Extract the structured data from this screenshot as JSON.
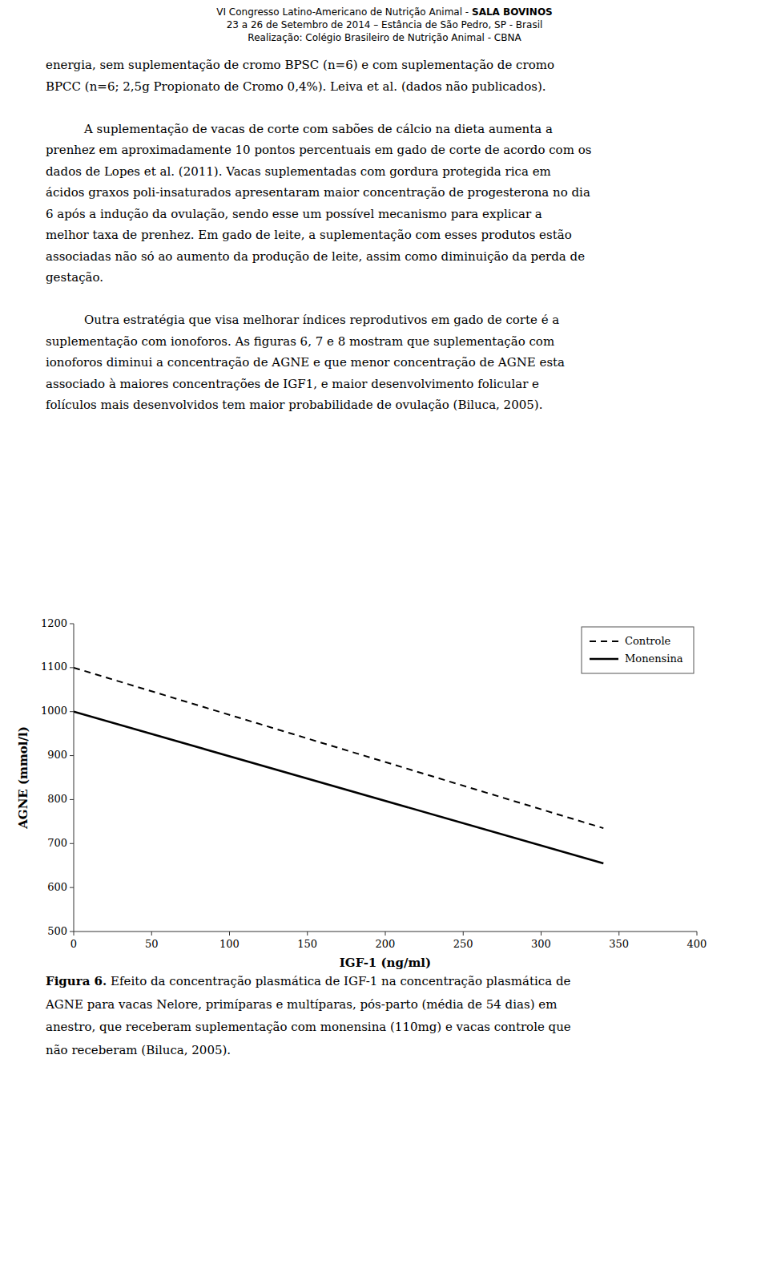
{
  "header": [
    [
      "VI Congresso Latino-Americano de Nutrição Animal - ",
      "SALA BOVINOS"
    ],
    [
      "23 a 26 de Setembro de 2014 – Estância de São Pedro, SP - Brasil"
    ],
    [
      "Realização: Colégio Brasileiro de Nutrição Animal - CBNA"
    ]
  ],
  "body": [
    {
      "indent": false,
      "lines": [
        "energia, sem suplementação de cromo BPSC (n=6) e com suplementação de cromo",
        "BPCC (n=6; 2,5g Propionato de Cromo 0,4%).  Leiva et al. (dados não publicados)."
      ]
    },
    {
      "indent": true,
      "lines": [
        "A suplementação de vacas de corte com  sabões de cálcio na dieta aumenta a",
        "prenhez em aproximadamente 10 pontos percentuais em gado de corte de acordo com os",
        "dados de Lopes et al. (2011). Vacas suplementadas com gordura protegida rica em",
        "ácidos graxos poli-insaturados apresentaram maior concentração de progesterona no dia",
        "6 após a indução da ovulação, sendo esse um possível mecanismo para explicar a",
        "melhor taxa de prenhez. Em gado de leite, a suplementação com esses produtos estão",
        "associadas não só ao aumento da produção de leite, assim como diminuição da perda de",
        "gestação."
      ]
    },
    {
      "indent": true,
      "lines": [
        "Outra estratégia que visa melhorar índices reprodutivos em gado de corte é a",
        "suplementação com ionoforos. As figuras 6, 7 e 8 mostram que suplementação com",
        "ionoforos diminui a concentração de AGNE e que menor concentração de AGNE esta",
        "associado à maiores concentrações de  IGF1, e maior desenvolvimento folicular e",
        "folículos mais desenvolvidos tem maior probabilidade de ovulação (Biluca, 2005)."
      ]
    }
  ],
  "caption": [
    [
      "Figura 6.",
      " Efeito da concentração plasmática de IGF-1 na concentração plasmática de"
    ],
    [
      "AGNE para vacas Nelore, primíparas e multíparas, pós-parto (média de 54 dias) em"
    ],
    [
      "anestro, que receberam suplementação com monensina (110mg) e vacas controle que"
    ],
    [
      "não receberam (Biluca, 2005)."
    ]
  ],
  "chart_data": {
    "type": "line",
    "x": [
      0,
      340
    ],
    "series": [
      {
        "name": "Controle",
        "color": "#000000",
        "line_style": "dashed",
        "values": [
          1100,
          735
        ]
      },
      {
        "name": "Monensina",
        "color": "#000000",
        "line_style": "solid",
        "values": [
          1000,
          655
        ]
      }
    ],
    "xlim": [
      0,
      400
    ],
    "ylim": [
      500,
      1200
    ],
    "xticks": [
      0,
      50,
      100,
      150,
      200,
      250,
      300,
      350,
      400
    ],
    "yticks": [
      500,
      600,
      700,
      800,
      900,
      1000,
      1100,
      1200
    ],
    "xlabel": "IGF-1 (ng/ml)",
    "ylabel": "AGNE (mmol/l)",
    "legend": "upper right",
    "grid": false
  }
}
